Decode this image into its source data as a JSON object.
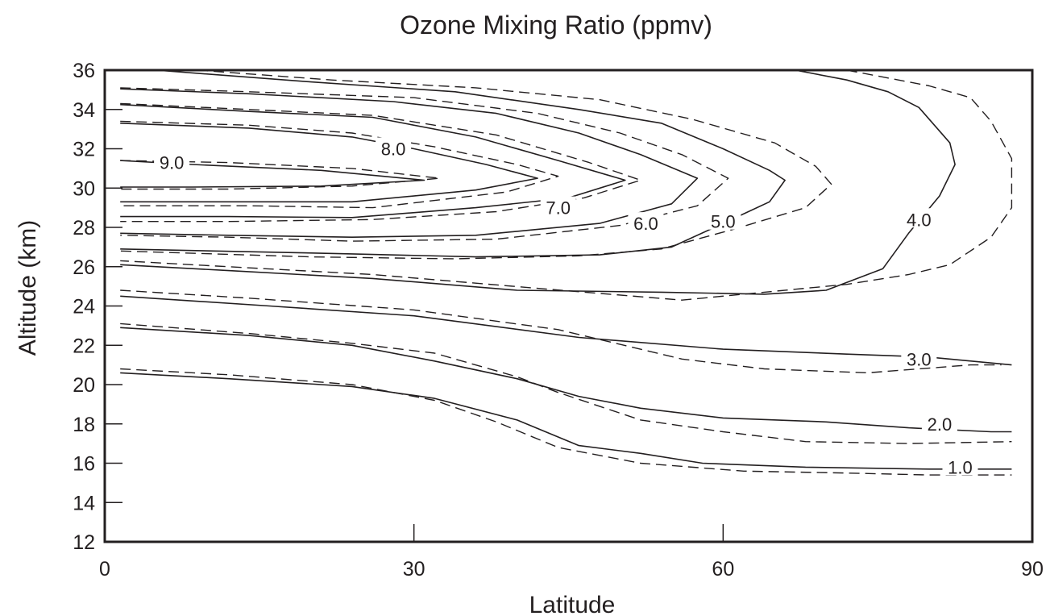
{
  "chart_data": {
    "type": "contour",
    "title": "Ozone Mixing Ratio (ppmv)",
    "xlabel": "Latitude",
    "ylabel": "Altitude (km)",
    "xlim": [
      0,
      90
    ],
    "ylim": [
      12,
      36
    ],
    "xticks": [
      0,
      30,
      60,
      90
    ],
    "yticks": [
      12,
      14,
      16,
      18,
      20,
      22,
      24,
      26,
      28,
      30,
      32,
      34,
      36
    ],
    "grid": false,
    "legend": "none",
    "line_styles": [
      "solid",
      "dashed"
    ],
    "contours": [
      {
        "level": "9.0",
        "label_at": [
          6.5,
          31.3
        ],
        "solid": [
          [
            1.5,
            31.4
          ],
          [
            8.5,
            31.2
          ],
          [
            21,
            30.9
          ],
          [
            31,
            30.4
          ],
          [
            21,
            30.1
          ],
          [
            8.5,
            30.05
          ],
          [
            1.5,
            30.05
          ]
        ],
        "dashed": [
          [
            1.5,
            31.4
          ],
          [
            12,
            31.3
          ],
          [
            24,
            31.0
          ],
          [
            32.5,
            30.5
          ],
          [
            24,
            30.1
          ],
          [
            12,
            29.95
          ],
          [
            1.5,
            29.95
          ]
        ]
      },
      {
        "level": "8.0",
        "label_at": [
          28,
          32.0
        ],
        "solid": [
          [
            1.5,
            33.3
          ],
          [
            14,
            33.05
          ],
          [
            24,
            32.6
          ],
          [
            30,
            32.0
          ],
          [
            37,
            31.2
          ],
          [
            42,
            30.5
          ],
          [
            36,
            29.9
          ],
          [
            24,
            29.3
          ],
          [
            14,
            29.3
          ],
          [
            1.5,
            29.3
          ]
        ],
        "dashed": [
          [
            1.5,
            33.4
          ],
          [
            14,
            33.2
          ],
          [
            24,
            32.8
          ],
          [
            32,
            32.1
          ],
          [
            40,
            31.2
          ],
          [
            44,
            30.6
          ],
          [
            39,
            29.8
          ],
          [
            26,
            29.0
          ],
          [
            14,
            29.1
          ],
          [
            1.5,
            29.1
          ]
        ]
      },
      {
        "level": "7.0",
        "label_at": [
          44,
          29.0
        ],
        "solid": [
          [
            1.5,
            34.25
          ],
          [
            14,
            33.9
          ],
          [
            26,
            33.6
          ],
          [
            36,
            32.6
          ],
          [
            44,
            31.4
          ],
          [
            50.5,
            30.4
          ],
          [
            45,
            29.5
          ],
          [
            36,
            29.0
          ],
          [
            24,
            28.5
          ],
          [
            12,
            28.55
          ],
          [
            1.5,
            28.55
          ]
        ],
        "dashed": [
          [
            1.5,
            34.3
          ],
          [
            14,
            34.0
          ],
          [
            26,
            33.7
          ],
          [
            38,
            32.7
          ],
          [
            47,
            31.3
          ],
          [
            52,
            30.4
          ],
          [
            46.5,
            29.5
          ],
          [
            38,
            28.8
          ],
          [
            26,
            28.4
          ],
          [
            12,
            28.3
          ],
          [
            1.5,
            28.3
          ]
        ]
      },
      {
        "level": "6.0",
        "label_at": [
          52.5,
          28.2
        ],
        "solid": [
          [
            1.5,
            35.05
          ],
          [
            14,
            34.8
          ],
          [
            28,
            34.4
          ],
          [
            38,
            33.8
          ],
          [
            46,
            32.8
          ],
          [
            52,
            31.7
          ],
          [
            57.5,
            30.5
          ],
          [
            55,
            29.2
          ],
          [
            48,
            28.2
          ],
          [
            36,
            27.6
          ],
          [
            24,
            27.5
          ],
          [
            12,
            27.6
          ],
          [
            1.5,
            27.7
          ]
        ],
        "dashed": [
          [
            1.5,
            35.1
          ],
          [
            14,
            34.9
          ],
          [
            30,
            34.6
          ],
          [
            42,
            33.8
          ],
          [
            50,
            32.8
          ],
          [
            56,
            31.7
          ],
          [
            60.5,
            30.5
          ],
          [
            57.5,
            29.1
          ],
          [
            50,
            28.1
          ],
          [
            38,
            27.4
          ],
          [
            24,
            27.3
          ],
          [
            12,
            27.5
          ],
          [
            1.5,
            27.6
          ]
        ]
      },
      {
        "level": "5.0",
        "label_at": [
          60,
          28.3
        ],
        "solid": [
          [
            5,
            36.0
          ],
          [
            20,
            35.4
          ],
          [
            34,
            34.9
          ],
          [
            46,
            34.0
          ],
          [
            54,
            33.3
          ],
          [
            60,
            32.0
          ],
          [
            64.5,
            30.9
          ],
          [
            66,
            30.4
          ],
          [
            64.5,
            29.3
          ],
          [
            60,
            28.2
          ],
          [
            55,
            27.0
          ],
          [
            48,
            26.6
          ],
          [
            36,
            26.5
          ],
          [
            24,
            26.65
          ],
          [
            1.5,
            26.9
          ]
        ],
        "dashed": [
          [
            9,
            36.0
          ],
          [
            22,
            35.5
          ],
          [
            36,
            35.1
          ],
          [
            48,
            34.5
          ],
          [
            57,
            33.5
          ],
          [
            65,
            32.3
          ],
          [
            69,
            31.1
          ],
          [
            70.5,
            30.2
          ],
          [
            68,
            29.0
          ],
          [
            61,
            27.9
          ],
          [
            54,
            26.9
          ],
          [
            46,
            26.55
          ],
          [
            34,
            26.4
          ],
          [
            20,
            26.5
          ],
          [
            1.5,
            26.8
          ]
        ]
      },
      {
        "level": "4.0",
        "label_at": [
          79,
          28.4
        ],
        "solid": [
          [
            67,
            36.0
          ],
          [
            72,
            35.5
          ],
          [
            76,
            34.9
          ],
          [
            79,
            34.1
          ],
          [
            82,
            32.3
          ],
          [
            82.5,
            31.2
          ],
          [
            81,
            29.6
          ],
          [
            78,
            27.7
          ],
          [
            75.5,
            25.9
          ],
          [
            70,
            24.8
          ],
          [
            64,
            24.6
          ],
          [
            54,
            24.7
          ],
          [
            40,
            24.8
          ],
          [
            26,
            25.4
          ],
          [
            12,
            25.8
          ],
          [
            1.5,
            26.1
          ]
        ],
        "dashed": [
          [
            72,
            36.0
          ],
          [
            80,
            35.2
          ],
          [
            84,
            34.6
          ],
          [
            86,
            33.4
          ],
          [
            88,
            31.5
          ],
          [
            88,
            30.0
          ],
          [
            88,
            29.0
          ],
          [
            86,
            27.5
          ],
          [
            82,
            26.1
          ],
          [
            78,
            25.6
          ],
          [
            72,
            25.1
          ],
          [
            64,
            24.7
          ],
          [
            56,
            24.3
          ],
          [
            42,
            24.9
          ],
          [
            26,
            25.6
          ],
          [
            12,
            26.0
          ],
          [
            1.5,
            26.3
          ]
        ]
      },
      {
        "level": "3.0",
        "label_at": [
          79,
          21.3
        ],
        "solid": [
          [
            1.5,
            24.5
          ],
          [
            16,
            24.0
          ],
          [
            30,
            23.5
          ],
          [
            46,
            22.4
          ],
          [
            60,
            21.8
          ],
          [
            72,
            21.55
          ],
          [
            80,
            21.4
          ],
          [
            88,
            21.0
          ]
        ],
        "dashed": [
          [
            1.5,
            24.8
          ],
          [
            14,
            24.4
          ],
          [
            30,
            23.8
          ],
          [
            44,
            22.8
          ],
          [
            56,
            21.3
          ],
          [
            64,
            20.8
          ],
          [
            74,
            20.6
          ],
          [
            84,
            21.0
          ],
          [
            87,
            21.0
          ]
        ]
      },
      {
        "level": "2.0",
        "label_at": [
          81,
          18.0
        ],
        "solid": [
          [
            1.5,
            22.9
          ],
          [
            14,
            22.5
          ],
          [
            24,
            22.0
          ],
          [
            32,
            21.2
          ],
          [
            40,
            20.3
          ],
          [
            46,
            19.4
          ],
          [
            52,
            18.8
          ],
          [
            60,
            18.3
          ],
          [
            70,
            18.1
          ],
          [
            78,
            17.8
          ],
          [
            86,
            17.6
          ],
          [
            88,
            17.6
          ]
        ],
        "dashed": [
          [
            1.5,
            23.1
          ],
          [
            14,
            22.6
          ],
          [
            24,
            22.1
          ],
          [
            32,
            21.6
          ],
          [
            40,
            20.4
          ],
          [
            44,
            19.6
          ],
          [
            52,
            18.2
          ],
          [
            60,
            17.6
          ],
          [
            68,
            17.1
          ],
          [
            78,
            17.0
          ],
          [
            88,
            17.1
          ]
        ]
      },
      {
        "level": "1.0",
        "label_at": [
          83,
          15.8
        ],
        "solid": [
          [
            1.5,
            20.6
          ],
          [
            12,
            20.3
          ],
          [
            24,
            19.9
          ],
          [
            32,
            19.3
          ],
          [
            40,
            18.2
          ],
          [
            46,
            16.9
          ],
          [
            52,
            16.5
          ],
          [
            58,
            16.0
          ],
          [
            68,
            15.8
          ],
          [
            80,
            15.7
          ],
          [
            86,
            15.7
          ],
          [
            88,
            15.7
          ]
        ],
        "dashed": [
          [
            1.5,
            20.8
          ],
          [
            12,
            20.5
          ],
          [
            24,
            20.0
          ],
          [
            32,
            19.2
          ],
          [
            38,
            18.1
          ],
          [
            44,
            16.8
          ],
          [
            52,
            16.0
          ],
          [
            62,
            15.6
          ],
          [
            72,
            15.5
          ],
          [
            80,
            15.4
          ],
          [
            88,
            15.4
          ]
        ]
      }
    ]
  }
}
